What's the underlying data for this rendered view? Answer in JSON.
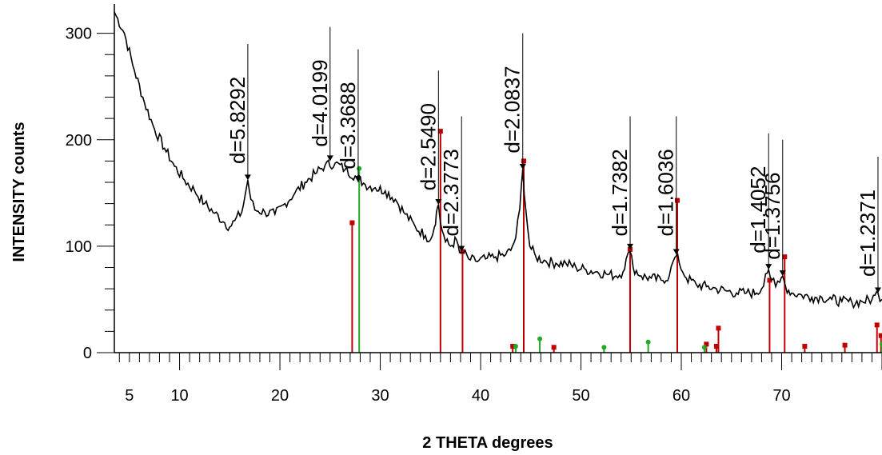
{
  "chart_data": {
    "type": "line",
    "xlabel": "2 THETA degrees",
    "ylabel": "INTENSITY counts",
    "xlim": [
      3.5,
      80
    ],
    "ylim": [
      0,
      320
    ],
    "x_ticks": [
      5,
      10,
      20,
      30,
      40,
      50,
      60,
      70
    ],
    "y_ticks": [
      0,
      100,
      200,
      300
    ],
    "pattern": [
      [
        3.5,
        320
      ],
      [
        4.5,
        300
      ],
      [
        5.5,
        265
      ],
      [
        6.5,
        235
      ],
      [
        7.5,
        210
      ],
      [
        8.5,
        192
      ],
      [
        9.5,
        175
      ],
      [
        10.5,
        162
      ],
      [
        11.5,
        152
      ],
      [
        12.5,
        140
      ],
      [
        13.5,
        131
      ],
      [
        14.5,
        122
      ],
      [
        15.0,
        118
      ],
      [
        15.5,
        124
      ],
      [
        16.2,
        132
      ],
      [
        16.5,
        146
      ],
      [
        16.8,
        162
      ],
      [
        17.1,
        144
      ],
      [
        17.5,
        134
      ],
      [
        18.5,
        132
      ],
      [
        19.5,
        130
      ],
      [
        20.5,
        140
      ],
      [
        21.5,
        150
      ],
      [
        22.5,
        160
      ],
      [
        23.5,
        168
      ],
      [
        24.5,
        176
      ],
      [
        25.5,
        178
      ],
      [
        26.5,
        172
      ],
      [
        27.5,
        166
      ],
      [
        28.5,
        158
      ],
      [
        29.5,
        155
      ],
      [
        30.5,
        152
      ],
      [
        31.5,
        144
      ],
      [
        32.5,
        130
      ],
      [
        33.5,
        118
      ],
      [
        34.5,
        110
      ],
      [
        35.0,
        106
      ],
      [
        35.4,
        118
      ],
      [
        35.6,
        132
      ],
      [
        35.8,
        139
      ],
      [
        36.0,
        122
      ],
      [
        36.5,
        104
      ],
      [
        37.0,
        100
      ],
      [
        37.6,
        106
      ],
      [
        37.9,
        94
      ],
      [
        38.3,
        94
      ],
      [
        38.8,
        88
      ],
      [
        39.5,
        86
      ],
      [
        40.5,
        88
      ],
      [
        41.5,
        90
      ],
      [
        42.5,
        92
      ],
      [
        43.0,
        96
      ],
      [
        43.5,
        108
      ],
      [
        43.9,
        135
      ],
      [
        44.2,
        172
      ],
      [
        44.5,
        135
      ],
      [
        44.9,
        100
      ],
      [
        45.5,
        90
      ],
      [
        46.5,
        86
      ],
      [
        47.5,
        84
      ],
      [
        48.5,
        84
      ],
      [
        49.5,
        80
      ],
      [
        50.5,
        78
      ],
      [
        51.5,
        76
      ],
      [
        52.5,
        74
      ],
      [
        53.5,
        72
      ],
      [
        54.2,
        76
      ],
      [
        54.5,
        88
      ],
      [
        54.9,
        95
      ],
      [
        55.2,
        80
      ],
      [
        56.0,
        72
      ],
      [
        57.0,
        70
      ],
      [
        58.0,
        68
      ],
      [
        58.8,
        72
      ],
      [
        59.2,
        86
      ],
      [
        59.5,
        91
      ],
      [
        59.8,
        84
      ],
      [
        60.5,
        70
      ],
      [
        61.5,
        64
      ],
      [
        62.5,
        62
      ],
      [
        63.5,
        60
      ],
      [
        64.5,
        58
      ],
      [
        65.5,
        56
      ],
      [
        66.5,
        56
      ],
      [
        67.5,
        56
      ],
      [
        68.0,
        60
      ],
      [
        68.4,
        74
      ],
      [
        68.7,
        78
      ],
      [
        69.0,
        68
      ],
      [
        69.4,
        62
      ],
      [
        69.8,
        66
      ],
      [
        70.1,
        72
      ],
      [
        70.4,
        62
      ],
      [
        71.0,
        56
      ],
      [
        72.0,
        54
      ],
      [
        73.0,
        52
      ],
      [
        74.0,
        52
      ],
      [
        75.0,
        50
      ],
      [
        76.0,
        48
      ],
      [
        77.0,
        47
      ],
      [
        78.0,
        48
      ],
      [
        79.0,
        50
      ],
      [
        79.3,
        54
      ],
      [
        79.6,
        56
      ],
      [
        80.0,
        50
      ]
    ],
    "peaks": [
      {
        "label": "d=5.8292",
        "x": 16.8,
        "y": 162,
        "label_y": 290
      },
      {
        "label": "d=4.0199",
        "x": 25.0,
        "y": 180,
        "label_y": 306
      },
      {
        "label": "d=3.3688",
        "x": 27.8,
        "y": 160,
        "label_y": 285
      },
      {
        "label": "d=2.5490",
        "x": 35.8,
        "y": 139,
        "label_y": 265
      },
      {
        "label": "d=2.3773",
        "x": 38.1,
        "y": 95,
        "label_y": 222
      },
      {
        "label": "d=2.0837",
        "x": 44.2,
        "y": 172,
        "label_y": 300
      },
      {
        "label": "d=1.7382",
        "x": 54.9,
        "y": 97,
        "label_y": 222
      },
      {
        "label": "d=1.6036",
        "x": 59.5,
        "y": 92,
        "label_y": 222
      },
      {
        "label": "d=1.4052",
        "x": 68.7,
        "y": 78,
        "label_y": 206
      },
      {
        "label": "d=1.3756",
        "x": 70.1,
        "y": 72,
        "label_y": 200
      },
      {
        "label": "d=1.2371",
        "x": 79.6,
        "y": 56,
        "label_y": 184
      }
    ],
    "reference_red": [
      {
        "x": 27.2,
        "y": 122
      },
      {
        "x": 36.0,
        "y": 208
      },
      {
        "x": 38.2,
        "y": 95
      },
      {
        "x": 44.3,
        "y": 180
      },
      {
        "x": 43.2,
        "y": 6
      },
      {
        "x": 47.3,
        "y": 5
      },
      {
        "x": 54.9,
        "y": 97
      },
      {
        "x": 59.6,
        "y": 143
      },
      {
        "x": 62.5,
        "y": 8
      },
      {
        "x": 63.5,
        "y": 6
      },
      {
        "x": 63.7,
        "y": 23
      },
      {
        "x": 68.8,
        "y": 68
      },
      {
        "x": 70.3,
        "y": 90
      },
      {
        "x": 72.3,
        "y": 6
      },
      {
        "x": 76.3,
        "y": 7
      },
      {
        "x": 79.5,
        "y": 26
      },
      {
        "x": 79.9,
        "y": 16
      }
    ],
    "reference_green": [
      {
        "x": 27.9,
        "y": 173
      },
      {
        "x": 43.5,
        "y": 6
      },
      {
        "x": 45.9,
        "y": 13
      },
      {
        "x": 52.3,
        "y": 5
      },
      {
        "x": 56.7,
        "y": 10
      },
      {
        "x": 62.3,
        "y": 5
      },
      {
        "x": 80.0,
        "y": 8
      }
    ],
    "colors": {
      "pattern": "#000000",
      "red": "#c00000",
      "green": "#22aa22",
      "marker": "#000000"
    }
  }
}
